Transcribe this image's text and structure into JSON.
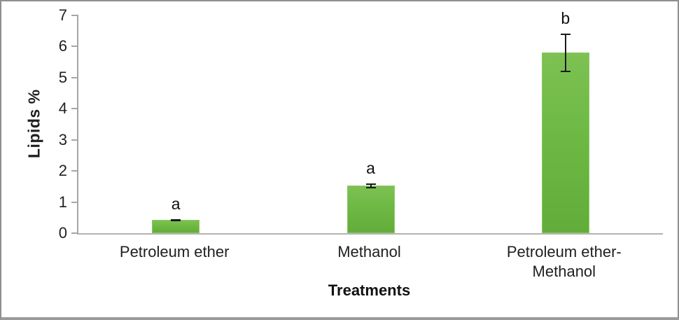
{
  "chart_data": {
    "type": "bar",
    "title": "",
    "xlabel": "Treatments",
    "ylabel": "Lipids %",
    "categories": [
      "Petroleum ether",
      "Methanol",
      "Petroleum ether-Methanol"
    ],
    "values": [
      0.42,
      1.52,
      5.8
    ],
    "errors": [
      0.04,
      0.08,
      0.62
    ],
    "bar_letters": [
      "a",
      "a",
      "b"
    ],
    "ylim": [
      0,
      7
    ],
    "yticks": [
      0,
      1,
      2,
      3,
      4,
      5,
      6,
      7
    ],
    "grid": false,
    "legend": false,
    "bar_color": "#6db944",
    "bar_border_color": "#8bc763",
    "axis_color": "#a6a6a6",
    "error_bar_color": "#1a1a1a",
    "text_color": "#1f1f1f"
  }
}
